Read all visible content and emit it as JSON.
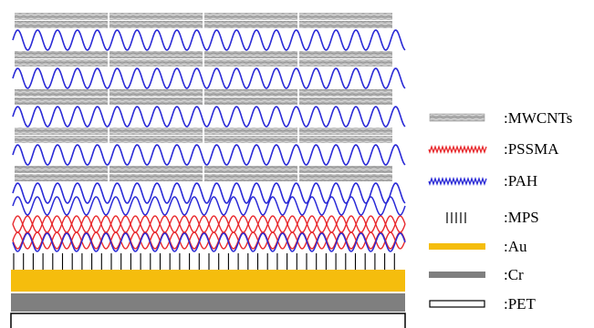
{
  "colors": {
    "mwcnt_fill": "#b7b7b7",
    "mwcnt_line": "#8c8c8c",
    "pssma": "#e8282c",
    "pah": "#2a2ad6",
    "mps": "#000000",
    "au": "#f5bd0d",
    "cr": "#7f7f7f",
    "pet_fill": "#ffffff",
    "pet_stroke": "#000000"
  },
  "legend": {
    "items": [
      {
        "key": "mwcnt",
        "label": ":MWCNTs"
      },
      {
        "key": "pssma",
        "label": ":PSSMA"
      },
      {
        "key": "pah",
        "label": ":PAH"
      },
      {
        "key": "mps",
        "label": ":MPS"
      },
      {
        "key": "au",
        "label": ":Au"
      },
      {
        "key": "cr",
        "label": ":Cr"
      },
      {
        "key": "pet",
        "label": ":PET"
      }
    ]
  }
}
